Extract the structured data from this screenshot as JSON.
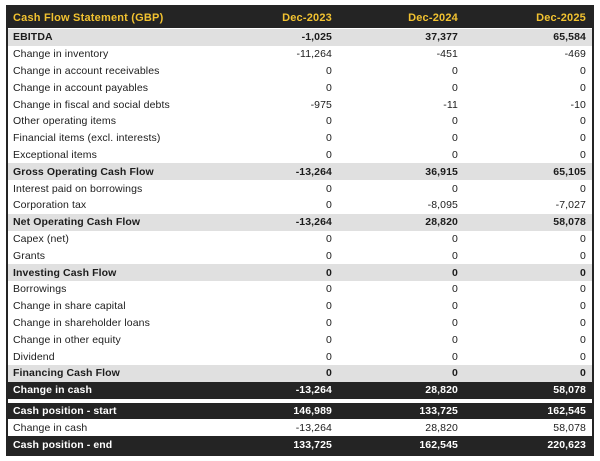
{
  "chart_data": {
    "type": "table",
    "title": "Cash Flow Statement (GBP)",
    "columns": [
      "Dec-2023",
      "Dec-2024",
      "Dec-2025"
    ],
    "rows": [
      {
        "label": "EBITDA",
        "values": [
          "-1,025",
          "37,377",
          "65,584"
        ],
        "style": "subtotal"
      },
      {
        "label": "Change in inventory",
        "values": [
          "-11,264",
          "-451",
          "-469"
        ],
        "style": "normal"
      },
      {
        "label": "Change in account receivables",
        "values": [
          "0",
          "0",
          "0"
        ],
        "style": "normal"
      },
      {
        "label": "Change in account payables",
        "values": [
          "0",
          "0",
          "0"
        ],
        "style": "normal"
      },
      {
        "label": "Change in fiscal and social debts",
        "values": [
          "-975",
          "-11",
          "-10"
        ],
        "style": "normal"
      },
      {
        "label": "Other operating items",
        "values": [
          "0",
          "0",
          "0"
        ],
        "style": "normal"
      },
      {
        "label": "Financial items (excl. interests)",
        "values": [
          "0",
          "0",
          "0"
        ],
        "style": "normal"
      },
      {
        "label": "Exceptional items",
        "values": [
          "0",
          "0",
          "0"
        ],
        "style": "normal"
      },
      {
        "label": "Gross Operating Cash Flow",
        "values": [
          "-13,264",
          "36,915",
          "65,105"
        ],
        "style": "subtotal"
      },
      {
        "label": "Interest paid on borrowings",
        "values": [
          "0",
          "0",
          "0"
        ],
        "style": "normal"
      },
      {
        "label": "Corporation tax",
        "values": [
          "0",
          "-8,095",
          "-7,027"
        ],
        "style": "normal"
      },
      {
        "label": "Net Operating Cash Flow",
        "values": [
          "-13,264",
          "28,820",
          "58,078"
        ],
        "style": "subtotal"
      },
      {
        "label": "Capex (net)",
        "values": [
          "0",
          "0",
          "0"
        ],
        "style": "normal"
      },
      {
        "label": "Grants",
        "values": [
          "0",
          "0",
          "0"
        ],
        "style": "normal"
      },
      {
        "label": "Investing Cash Flow",
        "values": [
          "0",
          "0",
          "0"
        ],
        "style": "subtotal"
      },
      {
        "label": "Borrowings",
        "values": [
          "0",
          "0",
          "0"
        ],
        "style": "normal"
      },
      {
        "label": "Change in share capital",
        "values": [
          "0",
          "0",
          "0"
        ],
        "style": "normal"
      },
      {
        "label": "Change in shareholder loans",
        "values": [
          "0",
          "0",
          "0"
        ],
        "style": "normal"
      },
      {
        "label": "Change in other equity",
        "values": [
          "0",
          "0",
          "0"
        ],
        "style": "normal"
      },
      {
        "label": "Dividend",
        "values": [
          "0",
          "0",
          "0"
        ],
        "style": "normal"
      },
      {
        "label": "Financing Cash Flow",
        "values": [
          "0",
          "0",
          "0"
        ],
        "style": "subtotal"
      },
      {
        "label": "Change in cash",
        "values": [
          "-13,264",
          "28,820",
          "58,078"
        ],
        "style": "dark"
      }
    ],
    "summary_rows": [
      {
        "label": "Cash position - start",
        "values": [
          "146,989",
          "133,725",
          "162,545"
        ],
        "style": "dark"
      },
      {
        "label": "Change in cash",
        "values": [
          "-13,264",
          "28,820",
          "58,078"
        ],
        "style": "normal"
      },
      {
        "label": "Cash position - end",
        "values": [
          "133,725",
          "162,545",
          "220,623"
        ],
        "style": "dark"
      }
    ]
  },
  "colors": {
    "header_bg": "#242424",
    "header_text": "#F2C230",
    "subtotal_row_bg": "#E0E0E0",
    "dark_row_bg": "#242424",
    "dark_row_text": "#FFFFFF"
  }
}
